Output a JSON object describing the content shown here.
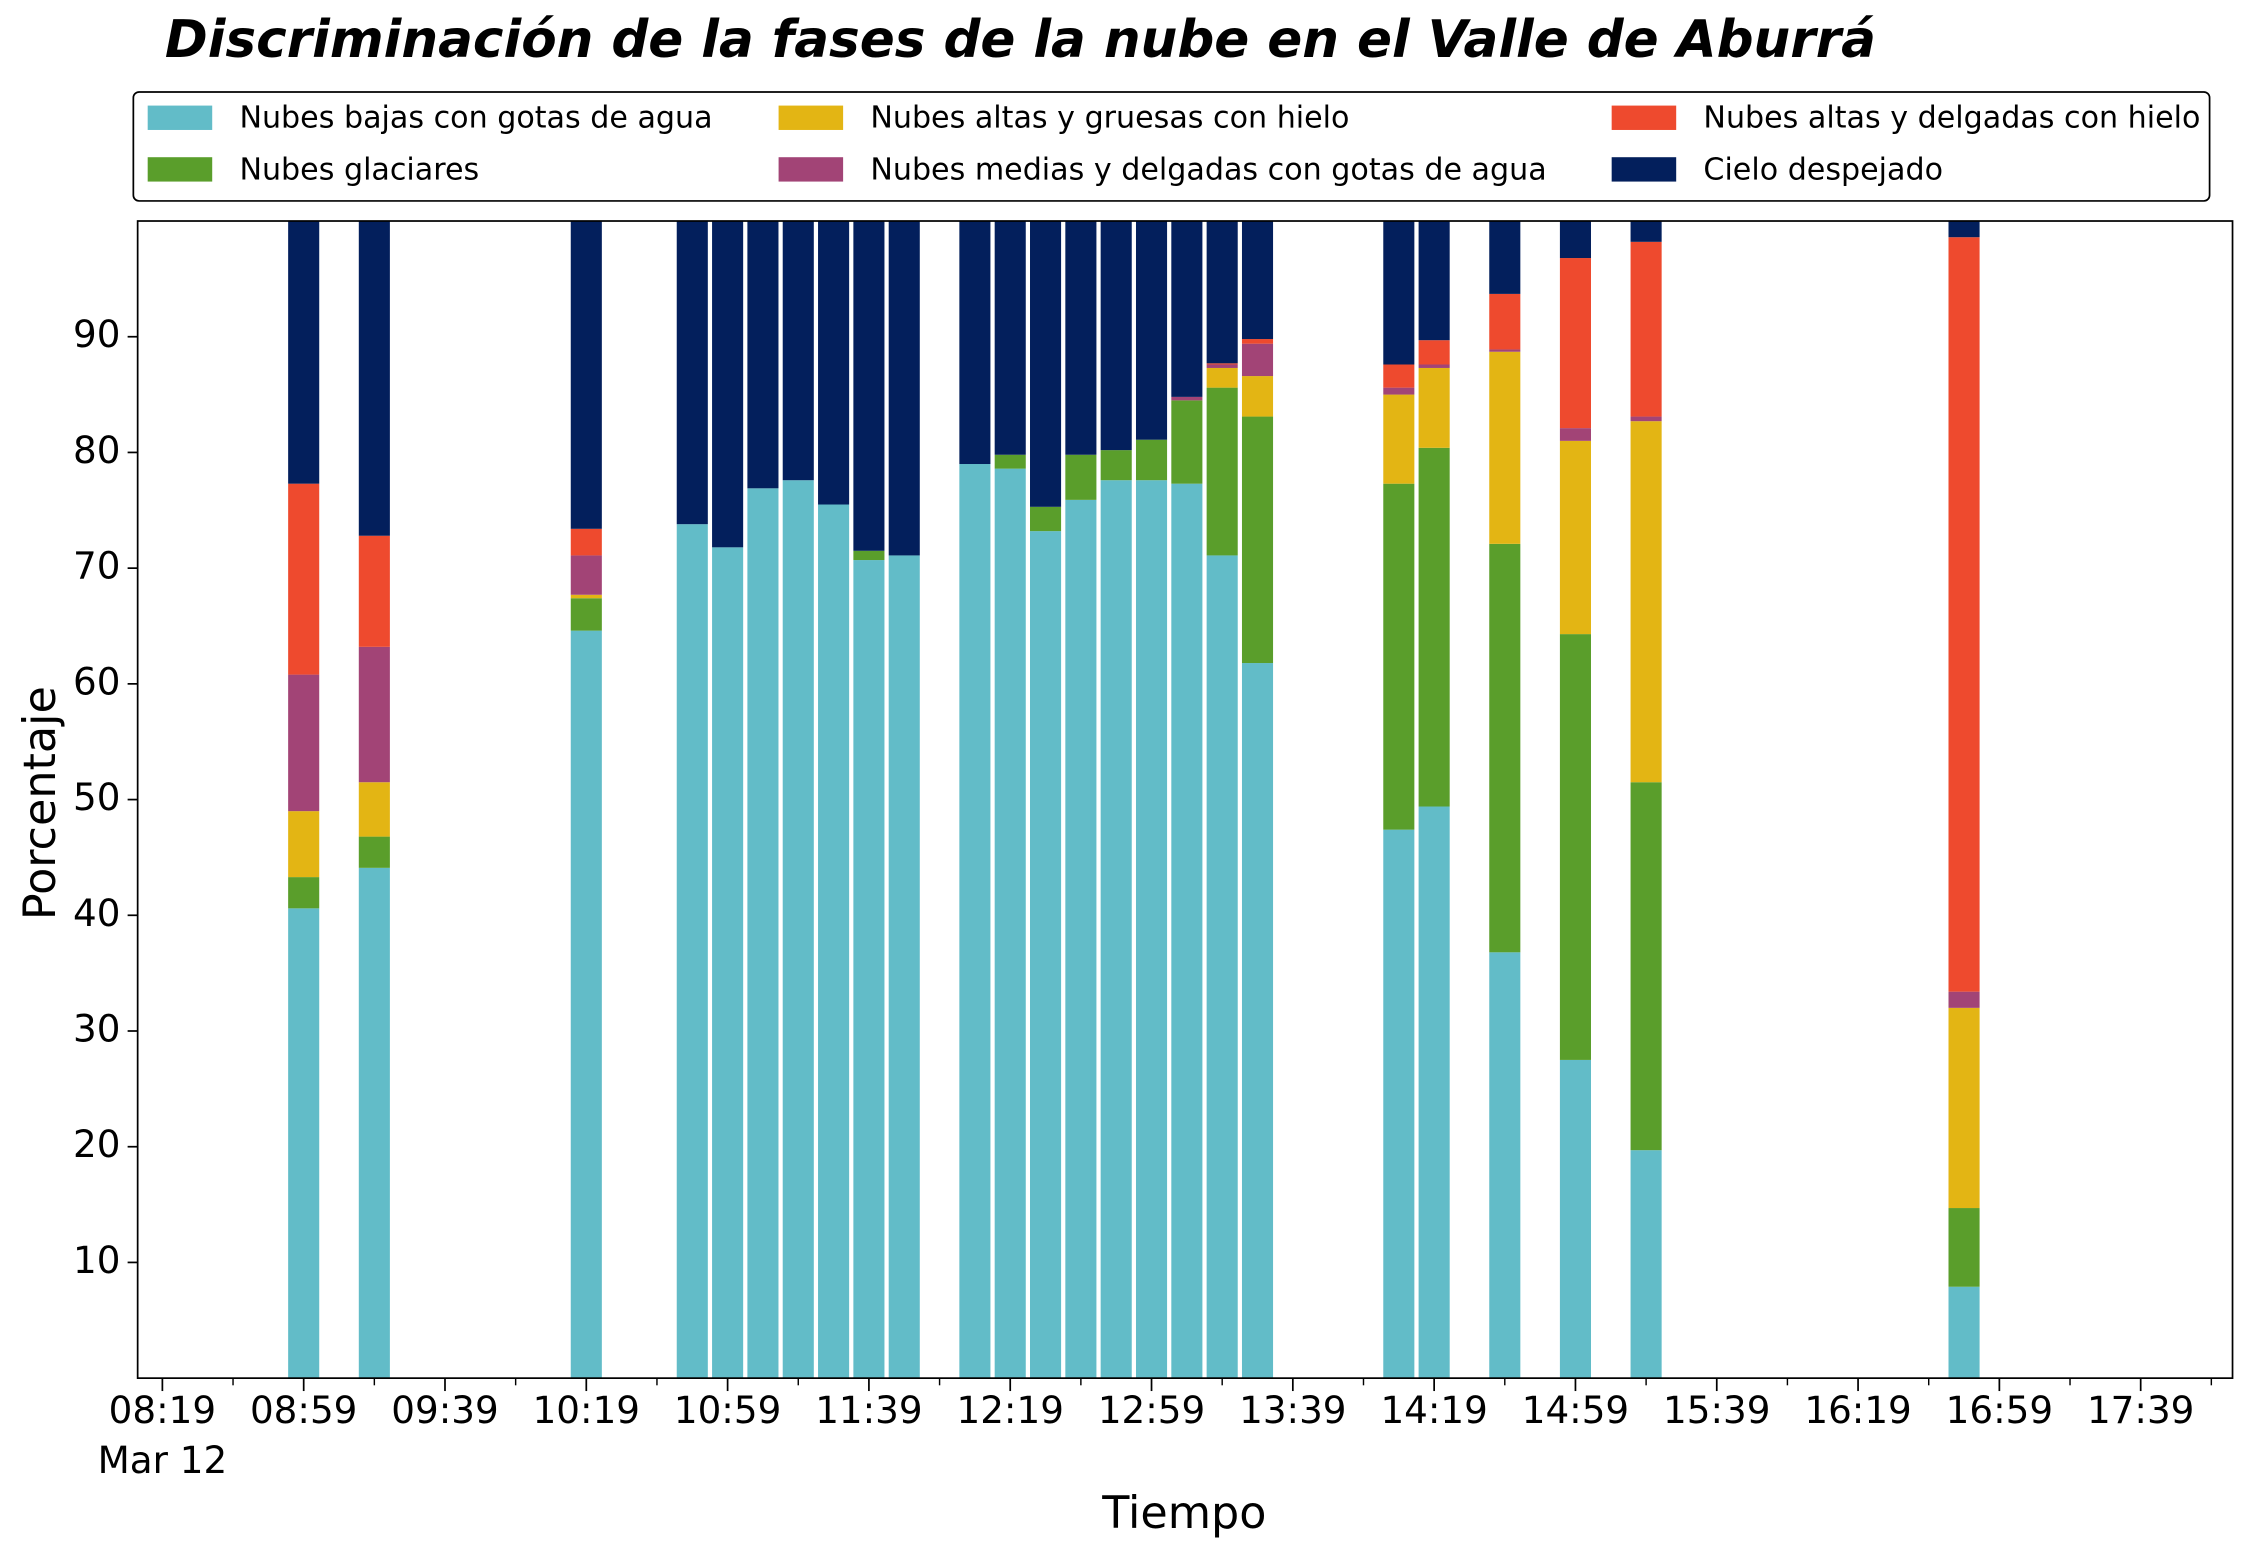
{
  "chart_data": {
    "type": "bar",
    "stacked": true,
    "title": "Discriminación de la fases de la nube en el Valle de Aburrá",
    "xlabel": "Tiempo",
    "ylabel": "Porcentaje",
    "date_label": "Mar 12",
    "x": [
      "08:59",
      "09:19",
      "10:19",
      "10:49",
      "10:59",
      "11:09",
      "11:19",
      "11:29",
      "11:39",
      "11:49",
      "12:09",
      "12:19",
      "12:29",
      "12:39",
      "12:49",
      "12:59",
      "13:09",
      "13:19",
      "13:29",
      "14:09",
      "14:19",
      "14:39",
      "14:59",
      "15:19",
      "16:49"
    ],
    "series": [
      {
        "name": "Nubes bajas con gotas de agua",
        "color": "#62bcc8",
        "values": [
          40.6,
          44.1,
          64.6,
          73.8,
          71.8,
          76.9,
          77.6,
          75.5,
          70.7,
          71.1,
          79.0,
          78.6,
          73.2,
          75.9,
          77.6,
          77.6,
          77.3,
          71.1,
          61.8,
          47.4,
          49.4,
          36.8,
          27.5,
          19.7,
          7.9
        ]
      },
      {
        "name": "Nubes glaciares",
        "color": "#5a9e2b",
        "values": [
          2.7,
          2.7,
          2.8,
          0,
          0,
          0,
          0,
          0,
          0.8,
          0,
          0,
          1.2,
          2.1,
          3.9,
          2.6,
          3.5,
          7.2,
          14.5,
          21.3,
          29.9,
          31.0,
          35.3,
          36.8,
          31.8,
          6.8
        ]
      },
      {
        "name": "Nubes altas y gruesas con hielo",
        "color": "#e3b514",
        "values": [
          5.7,
          4.7,
          0.3,
          0,
          0,
          0,
          0,
          0,
          0,
          0,
          0,
          0,
          0,
          0,
          0,
          0,
          0,
          1.7,
          3.5,
          7.7,
          6.9,
          16.6,
          16.7,
          31.2,
          17.3
        ]
      },
      {
        "name": "Nubes medias y delgadas con gotas de agua",
        "color": "#a24476",
        "values": [
          11.8,
          11.7,
          3.4,
          0,
          0,
          0,
          0,
          0,
          0,
          0,
          0,
          0,
          0,
          0,
          0,
          0,
          0.3,
          0.3,
          2.8,
          0.6,
          0.3,
          0.2,
          1.1,
          0.4,
          1.4
        ]
      },
      {
        "name": "Nubes altas y delgadas con hielo",
        "color": "#ee4a2e",
        "values": [
          16.5,
          9.6,
          2.3,
          0,
          0,
          0,
          0,
          0,
          0,
          0,
          0,
          0,
          0,
          0,
          0,
          0,
          0,
          0.1,
          0.4,
          2.0,
          2.1,
          4.8,
          14.7,
          15.1,
          65.2
        ]
      },
      {
        "name": "Cielo despejado",
        "color": "#031f5c",
        "values": [
          22.7,
          27.2,
          26.6,
          26.2,
          28.2,
          23.1,
          22.4,
          24.5,
          28.5,
          28.9,
          21.0,
          20.2,
          24.7,
          20.2,
          19.8,
          18.9,
          15.2,
          12.3,
          10.2,
          12.4,
          10.3,
          6.3,
          3.2,
          1.8,
          1.4
        ]
      }
    ],
    "xlim": [
      "08:12",
      "18:05"
    ],
    "xticks": [
      "08:19",
      "08:59",
      "09:39",
      "10:19",
      "10:59",
      "11:39",
      "12:19",
      "12:59",
      "13:39",
      "14:19",
      "14:59",
      "15:39",
      "16:19",
      "16:59",
      "17:39"
    ],
    "ylim": [
      0,
      100
    ],
    "yticks": [
      10,
      20,
      30,
      40,
      50,
      60,
      70,
      80,
      90
    ],
    "legend": "top",
    "legend_columns": 3
  }
}
